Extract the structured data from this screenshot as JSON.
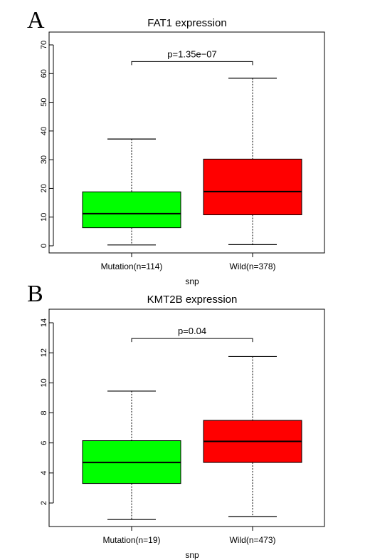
{
  "chart_data": [
    {
      "type": "box",
      "panel": "A",
      "title": "FAT1 expression",
      "xlabel": "snp",
      "ylabel": "",
      "ylim": [
        0,
        70
      ],
      "yticks": [
        0,
        10,
        20,
        30,
        40,
        50,
        60,
        70
      ],
      "categories": [
        "Mutation(n=114)",
        "Wild(n=378)"
      ],
      "boxes": [
        {
          "category": "Mutation(n=114)",
          "color": "#00ff00",
          "whisker_low": 0.3,
          "q1": 6.3,
          "median": 11.2,
          "q3": 18.8,
          "whisker_high": 37.2
        },
        {
          "category": "Wild(n=378)",
          "color": "#ff0000",
          "whisker_low": 0.4,
          "q1": 10.8,
          "median": 18.9,
          "q3": 30.2,
          "whisker_high": 58.4
        }
      ],
      "annotation": "p=1.35e−07",
      "bracket_y": 64.2
    },
    {
      "type": "box",
      "panel": "B",
      "title": "KMT2B expression",
      "xlabel": "snp",
      "ylabel": "",
      "ylim": [
        0.8,
        14.2
      ],
      "yticks": [
        2,
        4,
        6,
        8,
        10,
        12,
        14
      ],
      "categories": [
        "Mutation(n=19)",
        "Wild(n=473)"
      ],
      "boxes": [
        {
          "category": "Mutation(n=19)",
          "color": "#00ff00",
          "whisker_low": 0.9,
          "q1": 3.3,
          "median": 4.7,
          "q3": 6.15,
          "whisker_high": 9.45
        },
        {
          "category": "Wild(n=473)",
          "color": "#ff0000",
          "whisker_low": 1.1,
          "q1": 4.7,
          "median": 6.1,
          "q3": 7.5,
          "whisker_high": 11.75
        }
      ],
      "annotation": "p=0.04",
      "bracket_y": 12.95
    }
  ]
}
